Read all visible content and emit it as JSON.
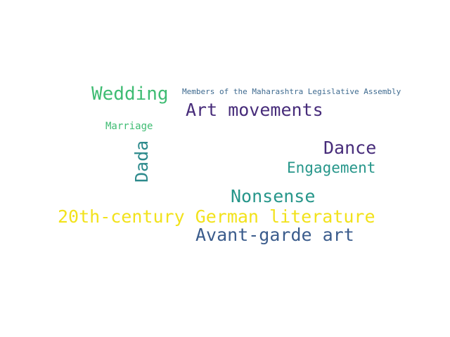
{
  "words": [
    {
      "text": "Wedding",
      "color": "#3fbc73"
    },
    {
      "text": "Members of the Maharashtra Legislative Assembly",
      "color": "#3e6a8f"
    },
    {
      "text": "Art movements",
      "color": "#472c7a"
    },
    {
      "text": "Marriage",
      "color": "#3fbc73"
    },
    {
      "text": "Dada",
      "color": "#2d8a8c"
    },
    {
      "text": "Dance",
      "color": "#472c7a"
    },
    {
      "text": "Engagement",
      "color": "#26968a"
    },
    {
      "text": "Nonsense",
      "color": "#26968a"
    },
    {
      "text": "20th-century German literature",
      "color": "#f2e21b"
    },
    {
      "text": "Avant-garde art",
      "color": "#3b5c8c"
    }
  ]
}
